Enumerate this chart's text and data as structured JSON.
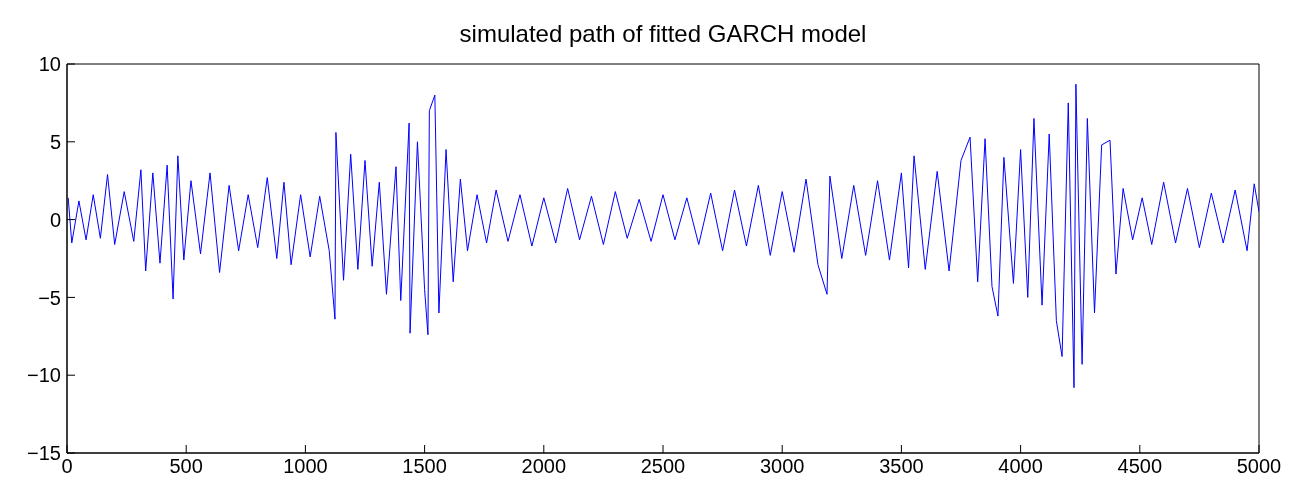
{
  "chart_data": {
    "type": "line",
    "title": "simulated path of fitted GARCH model",
    "xlim": [
      0,
      5000
    ],
    "xticks": [
      0,
      500,
      1000,
      1500,
      2000,
      2500,
      3000,
      3500,
      4000,
      4500,
      5000
    ],
    "ylim": [
      -15,
      10
    ],
    "yticks": [
      -15,
      -10,
      -5,
      0,
      5,
      10
    ],
    "grid": false,
    "legend": false,
    "marker": "none",
    "line_style": "solid",
    "series": [
      {
        "color": "#0000ff",
        "x": [
          5,
          20,
          50,
          80,
          110,
          140,
          170,
          200,
          240,
          280,
          310,
          330,
          360,
          390,
          420,
          445,
          465,
          490,
          520,
          560,
          600,
          640,
          680,
          720,
          760,
          800,
          840,
          880,
          910,
          940,
          980,
          1020,
          1060,
          1100,
          1124,
          1128,
          1160,
          1190,
          1220,
          1250,
          1280,
          1310,
          1340,
          1380,
          1400,
          1435,
          1439,
          1470,
          1500,
          1514,
          1520,
          1543,
          1560,
          1590,
          1620,
          1650,
          1680,
          1720,
          1760,
          1800,
          1850,
          1900,
          1950,
          2000,
          2050,
          2100,
          2150,
          2200,
          2250,
          2300,
          2350,
          2400,
          2450,
          2500,
          2550,
          2600,
          2650,
          2700,
          2750,
          2800,
          2850,
          2900,
          2950,
          3000,
          3050,
          3100,
          3150,
          3188,
          3200,
          3250,
          3300,
          3350,
          3400,
          3450,
          3500,
          3530,
          3553,
          3600,
          3650,
          3700,
          3750,
          3788,
          3820,
          3851,
          3880,
          3905,
          3930,
          3970,
          4000,
          4030,
          4056,
          4090,
          4120,
          4150,
          4174,
          4200,
          4224,
          4232,
          4258,
          4280,
          4310,
          4340,
          4375,
          4400,
          4430,
          4470,
          4510,
          4550,
          4600,
          4650,
          4700,
          4750,
          4800,
          4850,
          4900,
          4950,
          4980,
          5000
        ],
        "values": [
          1.4,
          -1.5,
          1.2,
          -1.3,
          1.6,
          -1.2,
          2.9,
          -1.6,
          1.8,
          -1.4,
          3.2,
          -3.3,
          3.0,
          -2.8,
          3.5,
          -5.1,
          4.1,
          -2.6,
          2.5,
          -2.2,
          3.0,
          -3.4,
          2.2,
          -2.0,
          1.6,
          -1.8,
          2.7,
          -2.5,
          2.4,
          -2.9,
          1.6,
          -2.4,
          1.5,
          -2.0,
          -6.4,
          5.6,
          -3.9,
          4.2,
          -3.2,
          3.8,
          -3.0,
          2.4,
          -4.8,
          3.4,
          -5.2,
          6.2,
          -7.3,
          5.0,
          -4.5,
          -7.4,
          7.0,
          8.0,
          -6.0,
          4.5,
          -4.0,
          2.6,
          -2.0,
          1.6,
          -1.5,
          1.9,
          -1.4,
          1.6,
          -1.7,
          1.4,
          -1.5,
          2.0,
          -1.3,
          1.5,
          -1.6,
          1.8,
          -1.2,
          1.3,
          -1.4,
          1.6,
          -1.3,
          1.4,
          -1.6,
          1.7,
          -2.0,
          1.9,
          -1.7,
          2.2,
          -2.3,
          1.8,
          -2.1,
          2.6,
          -2.9,
          -4.8,
          2.8,
          -2.5,
          2.2,
          -2.3,
          2.5,
          -2.6,
          3.0,
          -3.1,
          4.1,
          -3.2,
          3.1,
          -3.3,
          3.8,
          5.3,
          -4.0,
          5.2,
          -4.3,
          -6.2,
          4.0,
          -4.1,
          4.5,
          -5.0,
          6.5,
          -5.5,
          5.5,
          -6.5,
          -8.8,
          7.5,
          -10.8,
          8.7,
          -9.3,
          6.5,
          -6.0,
          4.8,
          5.1,
          -3.5,
          2.0,
          -1.3,
          1.4,
          -1.6,
          2.4,
          -1.5,
          2.0,
          -1.8,
          1.7,
          -1.5,
          1.9,
          -2.0,
          2.3,
          0.5
        ]
      }
    ]
  }
}
